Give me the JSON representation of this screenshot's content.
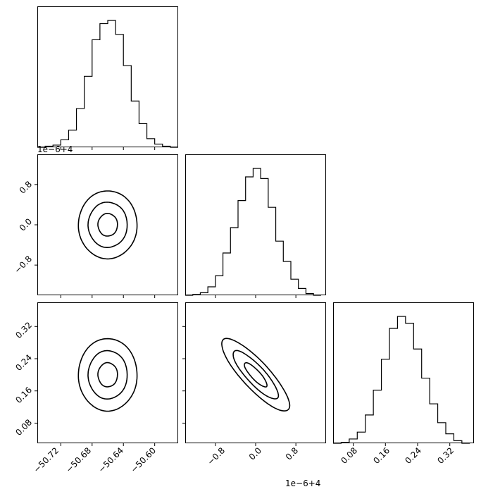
{
  "chart_data": [
    {
      "type": "histogram",
      "panel": "row1-col1",
      "x_param": "p0",
      "xlim": [
        -50.75,
        -50.57
      ],
      "bin_edges": [
        -50.75,
        -50.74,
        -50.73,
        -50.72,
        -50.71,
        -50.7,
        -50.69,
        -50.68,
        -50.67,
        -50.66,
        -50.65,
        -50.64,
        -50.63,
        -50.62,
        -50.61,
        -50.6,
        -50.59,
        -50.58,
        -50.57
      ],
      "values": [
        0,
        1,
        2,
        7,
        16,
        36,
        66,
        100,
        115,
        118,
        105,
        76,
        43,
        22,
        8,
        3,
        1,
        0
      ]
    },
    {
      "type": "contour",
      "panel": "row2-col1",
      "x_param": "p0",
      "y_param": "p1",
      "xlim": [
        -50.75,
        -50.57
      ],
      "ylim": [
        -1.4,
        1.4
      ],
      "center": [
        -50.66,
        0.0
      ],
      "sigma": [
        0.025,
        0.45
      ],
      "correlation": 0.0,
      "levels_sigma": [
        0.5,
        1.0,
        1.5
      ]
    },
    {
      "type": "histogram",
      "panel": "row2-col2",
      "x_param": "p1",
      "xlim": [
        -1.4,
        1.4
      ],
      "bin_edges": [
        -1.4,
        -1.25,
        -1.1,
        -0.95,
        -0.8,
        -0.65,
        -0.5,
        -0.35,
        -0.2,
        -0.05,
        0.1,
        0.25,
        0.4,
        0.55,
        0.7,
        0.85,
        1.0,
        1.15,
        1.3
      ],
      "values": [
        0,
        1,
        3,
        10,
        23,
        50,
        80,
        112,
        140,
        150,
        138,
        104,
        64,
        40,
        19,
        8,
        2,
        0
      ]
    },
    {
      "type": "contour",
      "panel": "row3-col1",
      "x_param": "p0",
      "y_param": "p2",
      "xlim": [
        -50.75,
        -50.57
      ],
      "ylim": [
        0.03,
        0.38
      ],
      "center": [
        -50.66,
        0.2
      ],
      "sigma": [
        0.025,
        0.06
      ],
      "correlation": 0.0,
      "levels_sigma": [
        0.5,
        1.0,
        1.5
      ]
    },
    {
      "type": "contour",
      "panel": "row3-col2",
      "x_param": "p1",
      "y_param": "p2",
      "xlim": [
        -1.4,
        1.4
      ],
      "ylim": [
        0.03,
        0.38
      ],
      "center": [
        0.0,
        0.2
      ],
      "sigma": [
        0.45,
        0.06
      ],
      "correlation": -0.85,
      "levels_sigma": [
        0.5,
        1.0,
        1.5
      ]
    },
    {
      "type": "histogram",
      "panel": "row3-col3",
      "x_param": "p2",
      "xlim": [
        0.03,
        0.38
      ],
      "bin_edges": [
        0.03,
        0.05,
        0.07,
        0.09,
        0.11,
        0.13,
        0.15,
        0.17,
        0.19,
        0.21,
        0.23,
        0.25,
        0.27,
        0.29,
        0.31,
        0.33,
        0.35,
        0.37
      ],
      "values": [
        0,
        1,
        5,
        13,
        33,
        62,
        98,
        134,
        148,
        140,
        110,
        76,
        46,
        24,
        11,
        3,
        0
      ]
    }
  ],
  "labels": {
    "offset_col1": "1e−6+4",
    "offset_col2": "1e−6+4",
    "x_ticks_p0": [
      "−50.72",
      "−50.68",
      "−50.64",
      "−50.60"
    ],
    "x_ticks_p1": [
      "−0.8",
      "0.0",
      "0.8"
    ],
    "x_ticks_p2": [
      "0.08",
      "0.16",
      "0.24",
      "0.32"
    ],
    "y_ticks_p1": [
      "0.8",
      "0.0",
      "−0.8"
    ],
    "y_ticks_p2": [
      "0.32",
      "0.24",
      "0.16",
      "0.08"
    ]
  }
}
